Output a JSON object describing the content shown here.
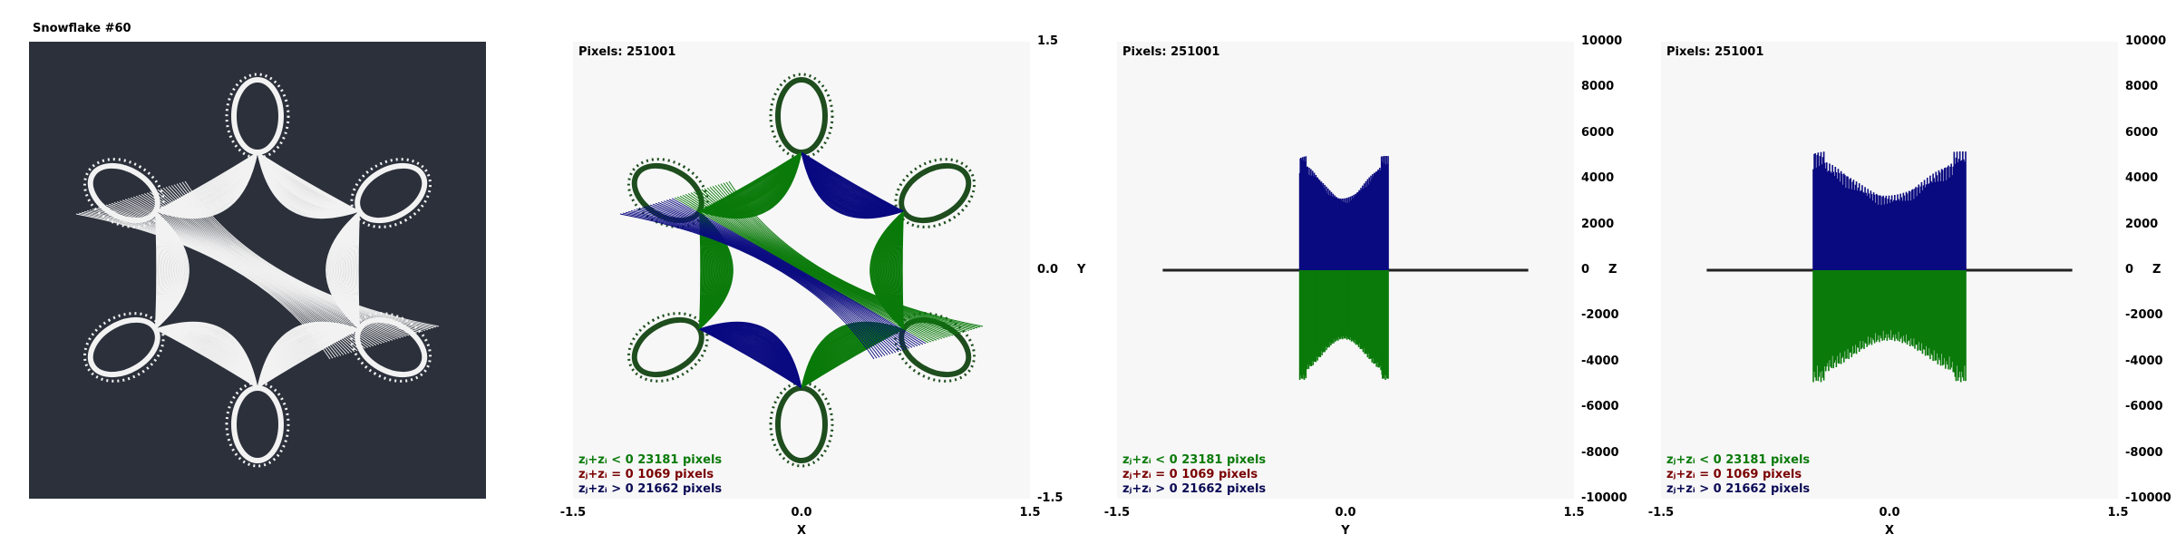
{
  "title": "Snowflake #60",
  "colors": {
    "background_dark": "#2b303b",
    "panel_light": "#f7f7f7",
    "negative": "#0a7a0a",
    "zero": "#7a0000",
    "positive": "#0a0a80",
    "flake_white": "#f2f2f2"
  },
  "chart_data": [
    {
      "type": "image",
      "title": "Snowflake #60"
    },
    {
      "type": "scatter",
      "pixels_label": "Pixels: 251001",
      "xlabel": "X",
      "ylabel": "Y",
      "xlim": [
        -1.5,
        1.5
      ],
      "ylim": [
        -1.5,
        1.5
      ],
      "x_ticks": [
        "-1.5",
        "0.0",
        "1.5"
      ],
      "y_ticks": [
        "1.5",
        "0.0",
        "-1.5"
      ],
      "legend": [
        {
          "label": "zⱼ+zᵢ < 0  23181 pixels",
          "value": 23181
        },
        {
          "label": "zⱼ+zᵢ = 0  1069 pixels",
          "value": 1069
        },
        {
          "label": "zⱼ+zᵢ > 0  21662 pixels",
          "value": 21662
        }
      ]
    },
    {
      "type": "bar",
      "pixels_label": "Pixels: 251001",
      "xlabel": "Y",
      "ylabel": "Z",
      "xlim": [
        -1.5,
        1.5
      ],
      "ylim": [
        -10000,
        10000
      ],
      "x_ticks": [
        "-1.5",
        "0.0",
        "1.5"
      ],
      "y_ticks": [
        "10000",
        "8000",
        "6000",
        "4000",
        "2000",
        "0",
        "-2000",
        "-4000",
        "-6000",
        "-8000",
        "-10000"
      ],
      "positive_range": [
        -0.3,
        0.28
      ],
      "negative_range": [
        -0.3,
        0.28
      ],
      "peak_positive": 5000,
      "peak_negative": -4800,
      "legend": [
        {
          "label": "zⱼ+zᵢ < 0  23181 pixels",
          "value": 23181
        },
        {
          "label": "zⱼ+zᵢ = 0  1069 pixels",
          "value": 1069
        },
        {
          "label": "zⱼ+zᵢ > 0  21662 pixels",
          "value": 21662
        }
      ]
    },
    {
      "type": "bar",
      "pixels_label": "Pixels: 251001",
      "xlabel": "X",
      "ylabel": "Z",
      "xlim": [
        -1.5,
        1.5
      ],
      "ylim": [
        -10000,
        10000
      ],
      "x_ticks": [
        "-1.5",
        "0.0",
        "1.5"
      ],
      "y_ticks": [
        "10000",
        "8000",
        "6000",
        "4000",
        "2000",
        "0",
        "-2000",
        "-4000",
        "-6000",
        "-8000",
        "-10000"
      ],
      "positive_range": [
        -0.5,
        0.5
      ],
      "negative_range": [
        -0.5,
        0.5
      ],
      "peak_positive": 5200,
      "peak_negative": -4900,
      "legend": [
        {
          "label": "zⱼ+zᵢ < 0  23181 pixels",
          "value": 23181
        },
        {
          "label": "zⱼ+zᵢ = 0  1069 pixels",
          "value": 1069
        },
        {
          "label": "zⱼ+zᵢ > 0  21662 pixels",
          "value": 21662
        }
      ]
    }
  ]
}
